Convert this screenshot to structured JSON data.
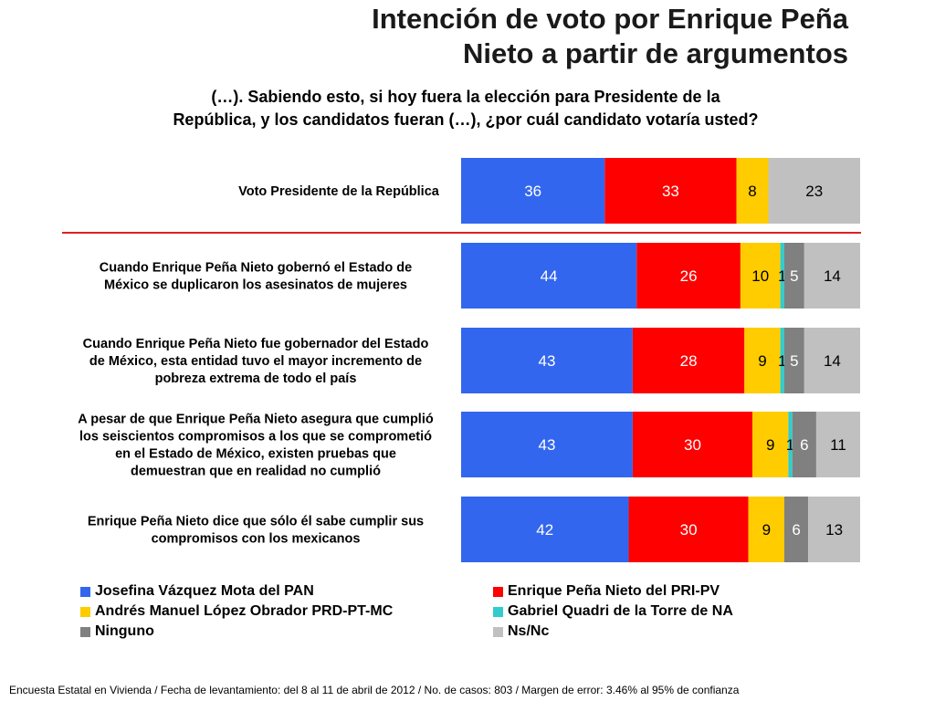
{
  "title_line1": "Intención de voto por Enrique Peña",
  "title_line2": "Nieto a partir de argumentos",
  "question_line1": "(…). Sabiendo esto, si hoy fuera la elección para Presidente de la",
  "question_line2": "República, y los candidatos fueran (…), ¿por cuál candidato votaría usted?",
  "footer": "Encuesta Estatal en Vivienda / Fecha de levantamiento: del  8 al 11 de abril de 2012 / No. de casos: 803 / Margen de error: 3.46% al 95% de confianza",
  "chart_data": {
    "type": "bar",
    "orientation": "horizontal",
    "stacked": true,
    "normalized_percent": true,
    "separator_color": "#dd2222",
    "categories": [
      [
        "Voto Presidente de la República"
      ],
      [
        "Cuando Enrique Peña Nieto gobernó el Estado de",
        "México se duplicaron los asesinatos de mujeres"
      ],
      [
        "Cuando Enrique Peña Nieto fue gobernador del Estado",
        "de México, esta entidad tuvo el mayor incremento de",
        "pobreza extrema de todo el país"
      ],
      [
        "A pesar de que Enrique Peña Nieto asegura que cumplió",
        "los seiscientos compromisos a los que se comprometió",
        "en el Estado de México, existen pruebas que",
        "demuestran que en realidad no cumplió"
      ],
      [
        "Enrique Peña Nieto dice que sólo él sabe cumplir sus",
        "compromisos con los mexicanos"
      ]
    ],
    "series": [
      {
        "name": "Josefina Vázquez Mota del PAN",
        "color": "#3366ee",
        "values": [
          36,
          44,
          43,
          43,
          42
        ]
      },
      {
        "name": "Enrique Peña Nieto del PRI-PV",
        "color": "#ff0000",
        "values": [
          33,
          26,
          28,
          30,
          30
        ]
      },
      {
        "name": "Andrés Manuel López Obrador PRD-PT-MC",
        "color": "#ffcc00",
        "values": [
          8,
          10,
          9,
          9,
          9
        ]
      },
      {
        "name": "Gabriel Quadri de la Torre de NA",
        "color": "#33cccc",
        "values": [
          0,
          1,
          1,
          1,
          0
        ]
      },
      {
        "name": "Ninguno",
        "color": "#808080",
        "values": [
          0,
          5,
          5,
          6,
          6
        ]
      },
      {
        "name": "Ns/Nc",
        "color": "#c0c0c0",
        "values": [
          23,
          14,
          14,
          11,
          13
        ]
      }
    ],
    "legend_order": [
      0,
      1,
      2,
      3,
      4,
      5
    ],
    "legend_position": "bottom"
  }
}
